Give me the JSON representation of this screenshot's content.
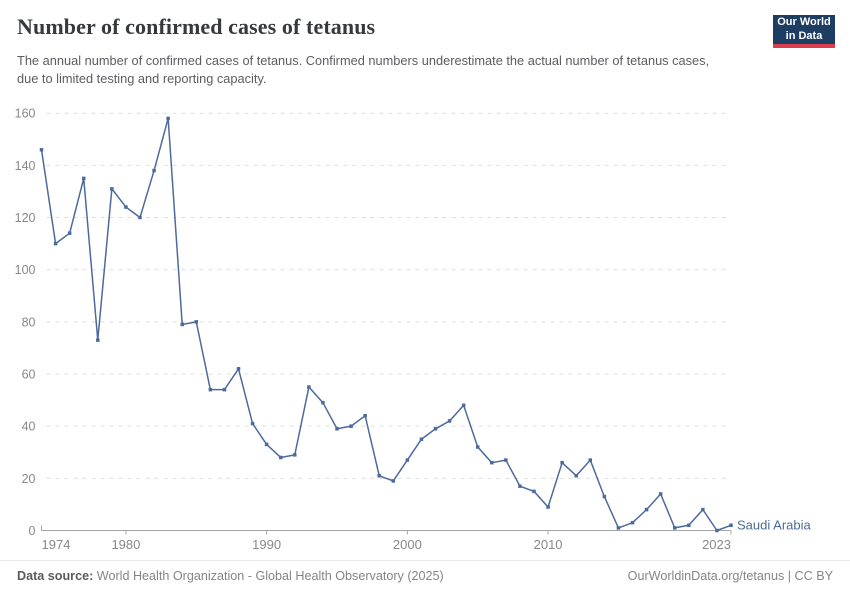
{
  "header": {
    "title": "Number of confirmed cases of tetanus",
    "subtitle": "The annual number of confirmed cases of tetanus. Confirmed numbers underestimate the actual number of tetanus cases, due to limited testing and reporting capacity."
  },
  "logo": {
    "line1": "Our World",
    "line2": "in Data",
    "bg_color": "#1d3d63",
    "accent_color": "#d93d4e"
  },
  "chart_data": {
    "type": "line",
    "title": "Number of confirmed cases of tetanus",
    "xlabel": "",
    "ylabel": "",
    "x": [
      1974,
      1975,
      1976,
      1977,
      1978,
      1979,
      1980,
      1981,
      1982,
      1983,
      1984,
      1985,
      1986,
      1987,
      1988,
      1989,
      1990,
      1991,
      1992,
      1993,
      1994,
      1995,
      1996,
      1997,
      1998,
      1999,
      2000,
      2001,
      2002,
      2003,
      2004,
      2005,
      2006,
      2007,
      2008,
      2009,
      2010,
      2011,
      2012,
      2013,
      2014,
      2015,
      2016,
      2017,
      2018,
      2019,
      2020,
      2021,
      2022,
      2023
    ],
    "series": [
      {
        "name": "Saudi Arabia",
        "color": "#4c6a9c",
        "values": [
          146,
          110,
          114,
          135,
          73,
          131,
          124,
          120,
          138,
          158,
          79,
          80,
          54,
          54,
          62,
          41,
          33,
          28,
          29,
          55,
          49,
          39,
          40,
          44,
          21,
          19,
          27,
          35,
          39,
          42,
          48,
          32,
          26,
          27,
          17,
          15,
          9,
          26,
          21,
          27,
          13,
          1,
          3,
          8,
          14,
          1,
          2,
          8,
          0,
          2
        ]
      }
    ],
    "ylim": [
      0,
      160
    ],
    "yticks": [
      0,
      20,
      40,
      60,
      80,
      100,
      120,
      140,
      160
    ],
    "xticks": [
      1974,
      1980,
      1990,
      2000,
      2010,
      2023
    ],
    "grid": "horizontal-dashed",
    "legend_position": "end-of-line-label",
    "colors": {
      "gridline": "#dedede",
      "axis": "#a5a5a5",
      "tick_label": "#888888"
    }
  },
  "footer": {
    "source_label": "Data source:",
    "source_text": " World Health Organization - Global Health Observatory (2025)",
    "rights": "OurWorldinData.org/tetanus | CC BY"
  }
}
